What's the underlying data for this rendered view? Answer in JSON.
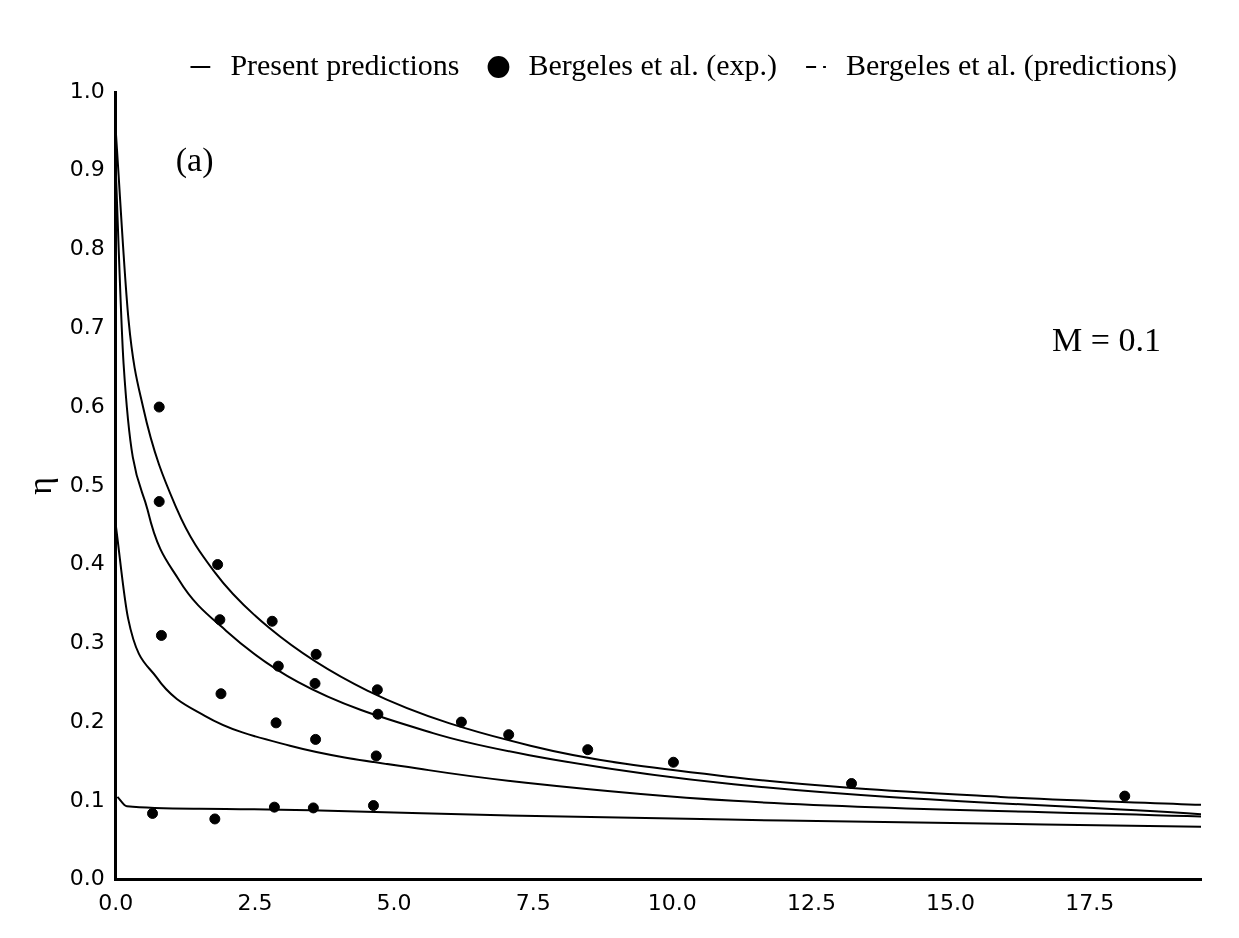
{
  "chart_data": {
    "type": "line",
    "ylabel": "η",
    "annotations": [
      "(a)",
      "M = 0.1"
    ],
    "xlim": [
      0,
      19.5
    ],
    "xticks": [
      {
        "value": 0,
        "label": "0.0"
      },
      {
        "value": 2.5,
        "label": "2.5"
      },
      {
        "value": 5,
        "label": "5.0"
      },
      {
        "value": 7.5,
        "label": "7.5"
      },
      {
        "value": 10,
        "label": "10.0"
      },
      {
        "value": 12.5,
        "label": "12.5"
      },
      {
        "value": 15,
        "label": "15.0"
      },
      {
        "value": 17.5,
        "label": "17.5"
      }
    ],
    "ylim": [
      0,
      1
    ],
    "yticks": [
      {
        "value": 0,
        "label": "0.0"
      },
      0.1,
      0.2,
      0.3,
      0.4,
      0.5,
      0.6,
      0.7,
      0.8,
      0.9,
      {
        "value": 1,
        "label": "1.0"
      }
    ],
    "grid": false,
    "legend": "top right",
    "series": [
      {
        "name": "Present predictions",
        "type": "line",
        "color": "#000000",
        "line_style": "solid",
        "marker": "none",
        "x": [
          0,
          0.23,
          0.49,
          1.1,
          1.78,
          2.75,
          4.52,
          7.45,
          11.1,
          15.9,
          19.5
        ],
        "values": [
          0.95,
          0.71,
          0.6,
          0.47,
          0.39,
          0.32,
          0.24,
          0.17,
          0.13,
          0.105,
          0.095
        ]
      },
      {
        "type": "line",
        "color": "#000000",
        "line_style": "solid",
        "marker": "none",
        "x": [
          0,
          0.14,
          0.58,
          1.13,
          1.98,
          3.27,
          5.7,
          7.43,
          11.1,
          19.5
        ],
        "values": [
          0.9,
          0.655,
          0.467,
          0.381,
          0.316,
          0.251,
          0.186,
          0.158,
          0.121,
          0.083
        ]
      },
      {
        "type": "line",
        "color": "#000000",
        "line_style": "solid",
        "marker": "none",
        "x": [
          0,
          0.22,
          0.73,
          1.6,
          3.13,
          5.62,
          7.37,
          11.1,
          19.5
        ],
        "values": [
          0.45,
          0.332,
          0.257,
          0.208,
          0.17,
          0.139,
          0.123,
          0.1,
          0.08
        ]
      },
      {
        "type": "line",
        "color": "#000000",
        "line_style": "solid",
        "marker": "none",
        "x": [
          0.03,
          0.2,
          1.5,
          3.5,
          7.3,
          12,
          19.5
        ],
        "values": [
          0.105,
          0.093,
          0.09,
          0.088,
          0.081,
          0.075,
          0.067
        ]
      },
      {
        "name": "Bergeles et al. (exp.)",
        "type": "scatter",
        "color": "#000000",
        "marker": "circle",
        "x": [
          0.78,
          0.78,
          0.82,
          0.66,
          1.83,
          1.87,
          1.89,
          1.78,
          2.81,
          2.92,
          2.88,
          2.85,
          3.6,
          3.58,
          3.59,
          3.55,
          4.7,
          4.71,
          4.68,
          4.63,
          6.21,
          7.06,
          8.48,
          10.02,
          13.22,
          18.13
        ],
        "values": [
          0.6,
          0.48,
          0.31,
          0.084,
          0.4,
          0.33,
          0.236,
          0.077,
          0.328,
          0.271,
          0.199,
          0.092,
          0.286,
          0.249,
          0.178,
          0.091,
          0.241,
          0.21,
          0.157,
          0.094,
          0.2,
          0.184,
          0.165,
          0.149,
          0.122,
          0.106
        ]
      },
      {
        "name": "Bergeles et al. (predictions)",
        "type": "line",
        "color": "#000000",
        "line_style": "dashed",
        "marker": "none"
      }
    ]
  }
}
